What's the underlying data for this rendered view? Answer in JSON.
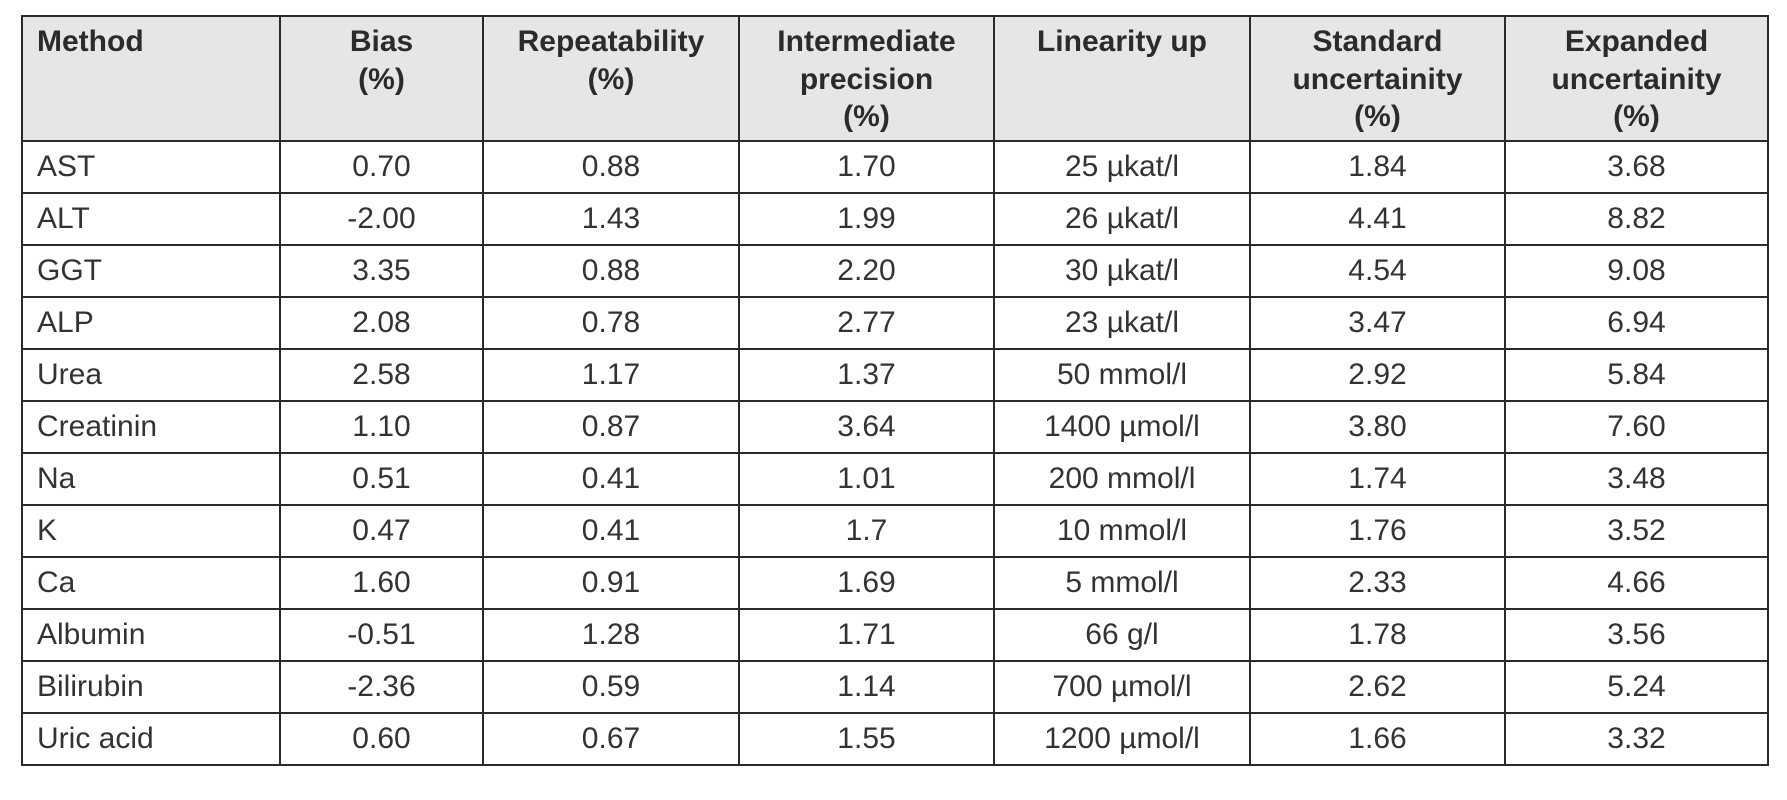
{
  "table": {
    "headers": [
      [
        "Method"
      ],
      [
        "Bias",
        "(%)"
      ],
      [
        "Repeatability",
        "(%)"
      ],
      [
        "Intermediate",
        "precision",
        "(%)"
      ],
      [
        "Linearity up"
      ],
      [
        "Standard",
        "uncertainity",
        "(%)"
      ],
      [
        "Expanded",
        "uncertainity",
        "(%)"
      ]
    ],
    "rows": [
      [
        "AST",
        "0.70",
        "0.88",
        "1.70",
        "25 µkat/l",
        "1.84",
        "3.68"
      ],
      [
        "ALT",
        "-2.00",
        "1.43",
        "1.99",
        "26 µkat/l",
        "4.41",
        "8.82"
      ],
      [
        "GGT",
        "3.35",
        "0.88",
        "2.20",
        "30 µkat/l",
        "4.54",
        "9.08"
      ],
      [
        "ALP",
        "2.08",
        "0.78",
        "2.77",
        "23 µkat/l",
        "3.47",
        "6.94"
      ],
      [
        "Urea",
        "2.58",
        "1.17",
        "1.37",
        "50 mmol/l",
        "2.92",
        "5.84"
      ],
      [
        "Creatinin",
        "1.10",
        "0.87",
        "3.64",
        "1400 µmol/l",
        "3.80",
        "7.60"
      ],
      [
        "Na",
        "0.51",
        "0.41",
        "1.01",
        "200 mmol/l",
        "1.74",
        "3.48"
      ],
      [
        "K",
        "0.47",
        "0.41",
        "1.7",
        "10 mmol/l",
        "1.76",
        "3.52"
      ],
      [
        "Ca",
        "1.60",
        "0.91",
        "1.69",
        "5 mmol/l",
        "2.33",
        "4.66"
      ],
      [
        "Albumin",
        "-0.51",
        "1.28",
        "1.71",
        "66 g/l",
        "1.78",
        "3.56"
      ],
      [
        "Bilirubin",
        "-2.36",
        "0.59",
        "1.14",
        "700 µmol/l",
        "2.62",
        "5.24"
      ],
      [
        "Uric acid",
        "0.60",
        "0.67",
        "1.55",
        "1200 µmol/l",
        "1.66",
        "3.32"
      ]
    ]
  },
  "colors": {
    "header_background": "#e6e6e6",
    "border": "#2a2a2a",
    "text": "#2b2b2b"
  }
}
